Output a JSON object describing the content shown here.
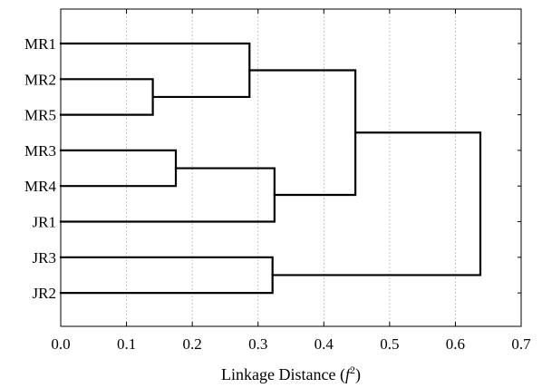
{
  "chart_data": {
    "type": "dendrogram",
    "orientation": "horizontal",
    "leaves": [
      "MR1",
      "MR2",
      "MR5",
      "MR3",
      "MR4",
      "JR1",
      "JR3",
      "JR2"
    ],
    "merges": [
      {
        "id": "c1",
        "children": [
          "MR2",
          "MR5"
        ],
        "distance": 0.14
      },
      {
        "id": "c2",
        "children": [
          "MR3",
          "MR4"
        ],
        "distance": 0.175
      },
      {
        "id": "c3",
        "children": [
          "MR1",
          "c1"
        ],
        "distance": 0.287
      },
      {
        "id": "c4",
        "children": [
          "JR3",
          "JR2"
        ],
        "distance": 0.322
      },
      {
        "id": "c5",
        "children": [
          "c2",
          "JR1"
        ],
        "distance": 0.325
      },
      {
        "id": "c6",
        "children": [
          "c3",
          "c5"
        ],
        "distance": 0.448
      },
      {
        "id": "c7",
        "children": [
          "c6",
          "c4"
        ],
        "distance": 0.638
      }
    ],
    "xlim": [
      0,
      0.7
    ],
    "xticks": [
      "0.0",
      "0.1",
      "0.2",
      "0.3",
      "0.4",
      "0.5",
      "0.6",
      "0.7"
    ],
    "xlabel_prefix": "Linkage Distance (",
    "xlabel_symbol": "f",
    "xlabel_superscript": "2",
    "xlabel_suffix": ")",
    "grid": "vertical dashed",
    "line_color": "#000000",
    "grid_color": "#b5b5b5"
  }
}
